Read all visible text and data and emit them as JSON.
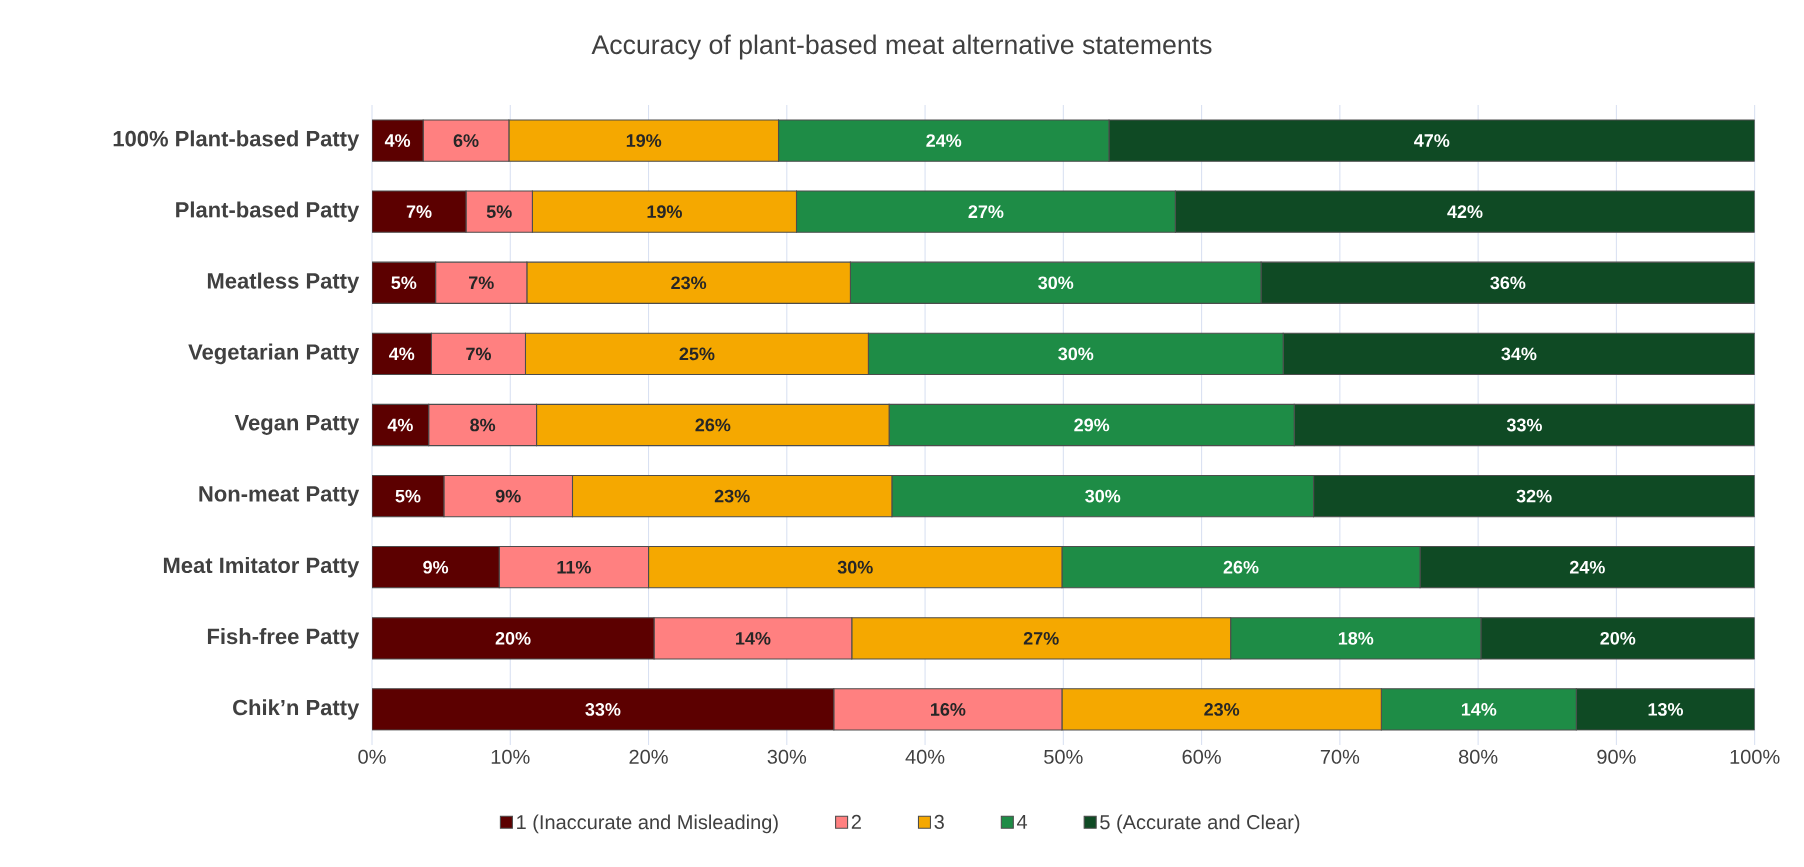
{
  "chart_data": {
    "type": "bar",
    "orientation": "horizontal",
    "stacked": true,
    "title": "Accuracy of plant-based meat alternative statements",
    "categories": [
      "100% Plant-based Patty",
      "Plant-based Patty",
      "Meatless Patty",
      "Vegetarian Patty",
      "Vegan Patty",
      "Non-meat Patty",
      "Meat Imitator Patty",
      "Fish-free Patty",
      "Chik’n Patty"
    ],
    "series": [
      {
        "name": "1 (Inaccurate and Misleading)",
        "color": "#5c0000",
        "values": [
          3.7,
          6.8,
          4.6,
          4.3,
          4.1,
          5.2,
          9.2,
          20.4,
          33.4
        ],
        "value_labels": [
          "4%",
          "7%",
          "5%",
          "4%",
          "4%",
          "5%",
          "9%",
          "20%",
          "33%"
        ]
      },
      {
        "name": "2",
        "color": "#ff8080",
        "values": [
          6.2,
          4.8,
          6.6,
          6.8,
          7.8,
          9.3,
          10.8,
          14.3,
          16.5
        ],
        "value_labels": [
          "6%",
          "5%",
          "7%",
          "7%",
          "8%",
          "9%",
          "11%",
          "14%",
          "16%"
        ]
      },
      {
        "name": "3",
        "color": "#f5a800",
        "values": [
          19.5,
          19.1,
          23.4,
          24.8,
          25.5,
          23.1,
          29.9,
          27.4,
          23.1
        ],
        "value_labels": [
          "19%",
          "19%",
          "23%",
          "25%",
          "26%",
          "23%",
          "30%",
          "27%",
          "23%"
        ]
      },
      {
        "name": "4",
        "color": "#1e8c46",
        "values": [
          23.9,
          27.4,
          29.7,
          30.0,
          29.3,
          30.5,
          25.9,
          18.1,
          14.1
        ],
        "value_labels": [
          "24%",
          "27%",
          "30%",
          "30%",
          "29%",
          "30%",
          "26%",
          "18%",
          "14%"
        ]
      },
      {
        "name": "5 (Accurate and Clear)",
        "color": "#0f4a24",
        "values": [
          46.7,
          41.9,
          35.7,
          34.1,
          33.3,
          31.9,
          24.2,
          19.8,
          12.9
        ],
        "value_labels": [
          "47%",
          "42%",
          "36%",
          "34%",
          "33%",
          "32%",
          "24%",
          "20%",
          "13%"
        ]
      }
    ],
    "xlim": [
      0,
      100
    ],
    "xticks": [
      {
        "value": 0,
        "label": "0%"
      },
      {
        "value": 10,
        "label": "10%"
      },
      {
        "value": 20,
        "label": "20%"
      },
      {
        "value": 30,
        "label": "30%"
      },
      {
        "value": 40,
        "label": "40%"
      },
      {
        "value": 50,
        "label": "50%"
      },
      {
        "value": 60,
        "label": "60%"
      },
      {
        "value": 70,
        "label": "70%"
      },
      {
        "value": 80,
        "label": "80%"
      },
      {
        "value": 90,
        "label": "90%"
      },
      {
        "value": 100,
        "label": "100%"
      }
    ],
    "grid": "x",
    "legend": "bottom"
  }
}
